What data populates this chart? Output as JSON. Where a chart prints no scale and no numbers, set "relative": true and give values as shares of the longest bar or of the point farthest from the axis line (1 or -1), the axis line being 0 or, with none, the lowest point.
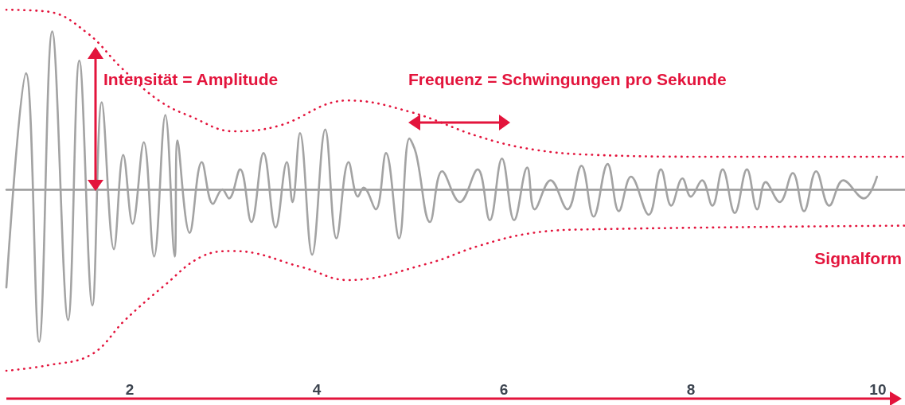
{
  "chart_data": {
    "type": "line",
    "relative": true,
    "xlim": [
      0.68,
      10.29
    ],
    "xticks": [
      2,
      4,
      6,
      8,
      10
    ],
    "marker": "none",
    "annotations": [
      "Intensität = Amplitude",
      "Frequenz = Schwingungen pro Sekunde",
      "Signalform"
    ],
    "series": [
      {
        "color": "#a3a3a3",
        "line_style": "solid",
        "x": [
          0.68,
          0.89,
          1.03,
          1.17,
          1.34,
          1.46,
          1.6,
          1.7,
          1.83,
          1.93,
          2.03,
          2.15,
          2.26,
          2.38,
          2.48,
          2.51,
          2.64,
          2.77,
          2.89,
          2.99,
          3.06,
          3.18,
          3.3,
          3.43,
          3.56,
          3.68,
          3.74,
          3.82,
          3.95,
          4.09,
          4.21,
          4.34,
          4.44,
          4.5,
          4.63,
          4.74,
          4.88,
          4.99,
          5.06,
          5.21,
          5.34,
          5.53,
          5.72,
          5.85,
          5.98,
          6.11,
          6.25,
          6.33,
          6.5,
          6.68,
          6.83,
          6.96,
          7.11,
          7.23,
          7.36,
          7.55,
          7.68,
          7.79,
          7.91,
          8.0,
          8.12,
          8.23,
          8.34,
          8.47,
          8.6,
          8.71,
          8.8,
          8.95,
          9.09,
          9.21,
          9.34,
          9.48,
          9.63,
          9.85,
          9.99
        ],
        "values": [
          -0.54,
          0.64,
          -0.84,
          0.87,
          -0.72,
          0.71,
          -0.64,
          0.48,
          -0.33,
          0.19,
          -0.19,
          0.26,
          -0.37,
          0.41,
          -0.37,
          0.27,
          -0.24,
          0.15,
          -0.08,
          0.0,
          -0.05,
          0.11,
          -0.18,
          0.2,
          -0.21,
          0.15,
          -0.07,
          0.31,
          -0.36,
          0.33,
          -0.27,
          0.15,
          -0.04,
          0.01,
          -0.11,
          0.2,
          -0.27,
          0.28,
          0.2,
          -0.18,
          0.1,
          -0.07,
          0.11,
          -0.17,
          0.17,
          -0.17,
          0.12,
          -0.11,
          0.05,
          -0.11,
          0.13,
          -0.15,
          0.14,
          -0.12,
          0.07,
          -0.14,
          0.11,
          -0.09,
          0.06,
          -0.04,
          0.05,
          -0.09,
          0.11,
          -0.13,
          0.11,
          -0.11,
          0.04,
          -0.07,
          0.09,
          -0.12,
          0.1,
          -0.09,
          0.05,
          -0.05,
          0.07
        ]
      },
      {
        "color": "#e3143c",
        "line_style": "dotted",
        "x": [
          0.68,
          1.12,
          1.55,
          1.91,
          2.31,
          2.66,
          3.11,
          3.59,
          4.33,
          4.98,
          5.74,
          6.31,
          6.97,
          8.27,
          10.29
        ],
        "values": [
          0.99,
          0.98,
          0.86,
          0.67,
          0.49,
          0.4,
          0.32,
          0.35,
          0.49,
          0.43,
          0.29,
          0.22,
          0.19,
          0.18,
          0.18
        ]
      },
      {
        "color": "#e3143c",
        "line_style": "dotted",
        "x": [
          0.68,
          1.12,
          1.59,
          1.95,
          2.37,
          2.77,
          3.11,
          3.85,
          4.33,
          5.18,
          5.74,
          6.31,
          6.97,
          10.29
        ],
        "values": [
          -1.0,
          -0.97,
          -0.91,
          -0.72,
          -0.53,
          -0.37,
          -0.34,
          -0.43,
          -0.5,
          -0.41,
          -0.31,
          -0.24,
          -0.22,
          -0.2
        ]
      }
    ]
  }
}
